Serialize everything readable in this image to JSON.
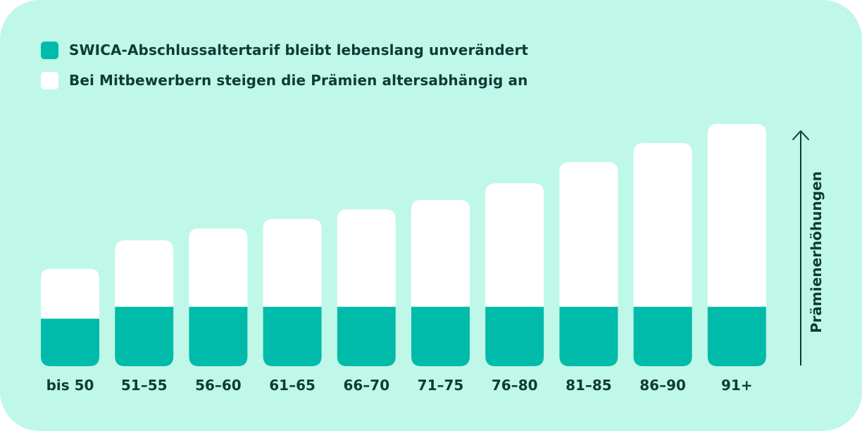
{
  "colors": {
    "background": "#bff8e8",
    "swica": "#00bba9",
    "competitor": "#ffffff",
    "text": "#0f3b37"
  },
  "legend": {
    "items": [
      {
        "label": "SWICA-Abschlussaltertarif bleibt lebenslang unverändert",
        "color": "#00bba9"
      },
      {
        "label": "Bei Mitbewerbern steigen die Prämien altersabhängig an",
        "color": "#ffffff"
      }
    ]
  },
  "chart_data": {
    "type": "bar",
    "stacked": true,
    "categories": [
      "bis 50",
      "51–55",
      "56–60",
      "61–65",
      "66–70",
      "71–75",
      "76–80",
      "81–85",
      "86–90",
      "91+"
    ],
    "series": [
      {
        "name": "SWICA-Abschlussaltertarif bleibt lebenslang unverändert",
        "values": [
          20,
          25,
          25,
          25,
          25,
          25,
          25,
          25,
          25,
          25
        ]
      },
      {
        "name": "Bei Mitbewerbern steigen die Prämien altersabhängig an",
        "values": [
          21,
          28,
          33,
          37,
          41,
          45,
          52,
          61,
          69,
          77
        ]
      }
    ],
    "ylabel": "Prämienerhöhungen",
    "ylim": [
      0,
      102
    ],
    "grid": false,
    "legend_position": "top-left"
  }
}
